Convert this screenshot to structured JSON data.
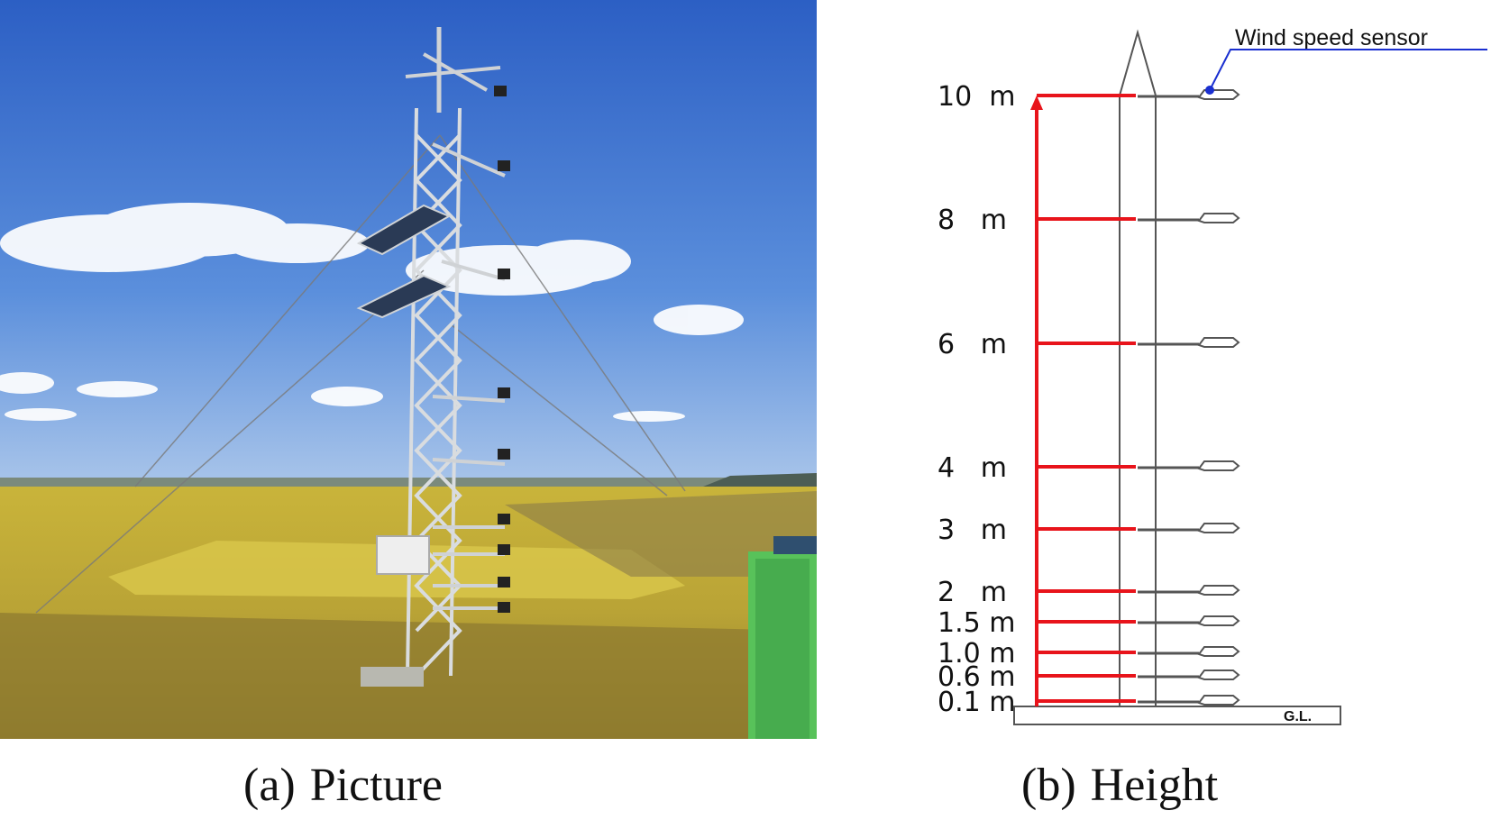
{
  "panel_a": {
    "caption_tag": "(a)",
    "caption_text": "Picture"
  },
  "panel_b": {
    "caption_tag": "(b)",
    "caption_text": "Height",
    "sensor_label": "Wind speed sensor",
    "ground_label": "G.L.",
    "heights": [
      {
        "value": 10,
        "label": "10  m"
      },
      {
        "value": 8,
        "label": "8   m"
      },
      {
        "value": 6,
        "label": "6   m"
      },
      {
        "value": 4,
        "label": "4   m"
      },
      {
        "value": 3,
        "label": "3   m"
      },
      {
        "value": 2,
        "label": "2   m"
      },
      {
        "value": 1.5,
        "label": "1.5 m"
      },
      {
        "value": 1.0,
        "label": "1.0 m"
      },
      {
        "value": 0.6,
        "label": "0.6 m"
      },
      {
        "value": 0.1,
        "label": "0.1 m"
      }
    ]
  },
  "colors": {
    "height_marker": "#e8141b",
    "sensor_pointer": "#1a2fd0",
    "tower_outline": "#555555"
  }
}
